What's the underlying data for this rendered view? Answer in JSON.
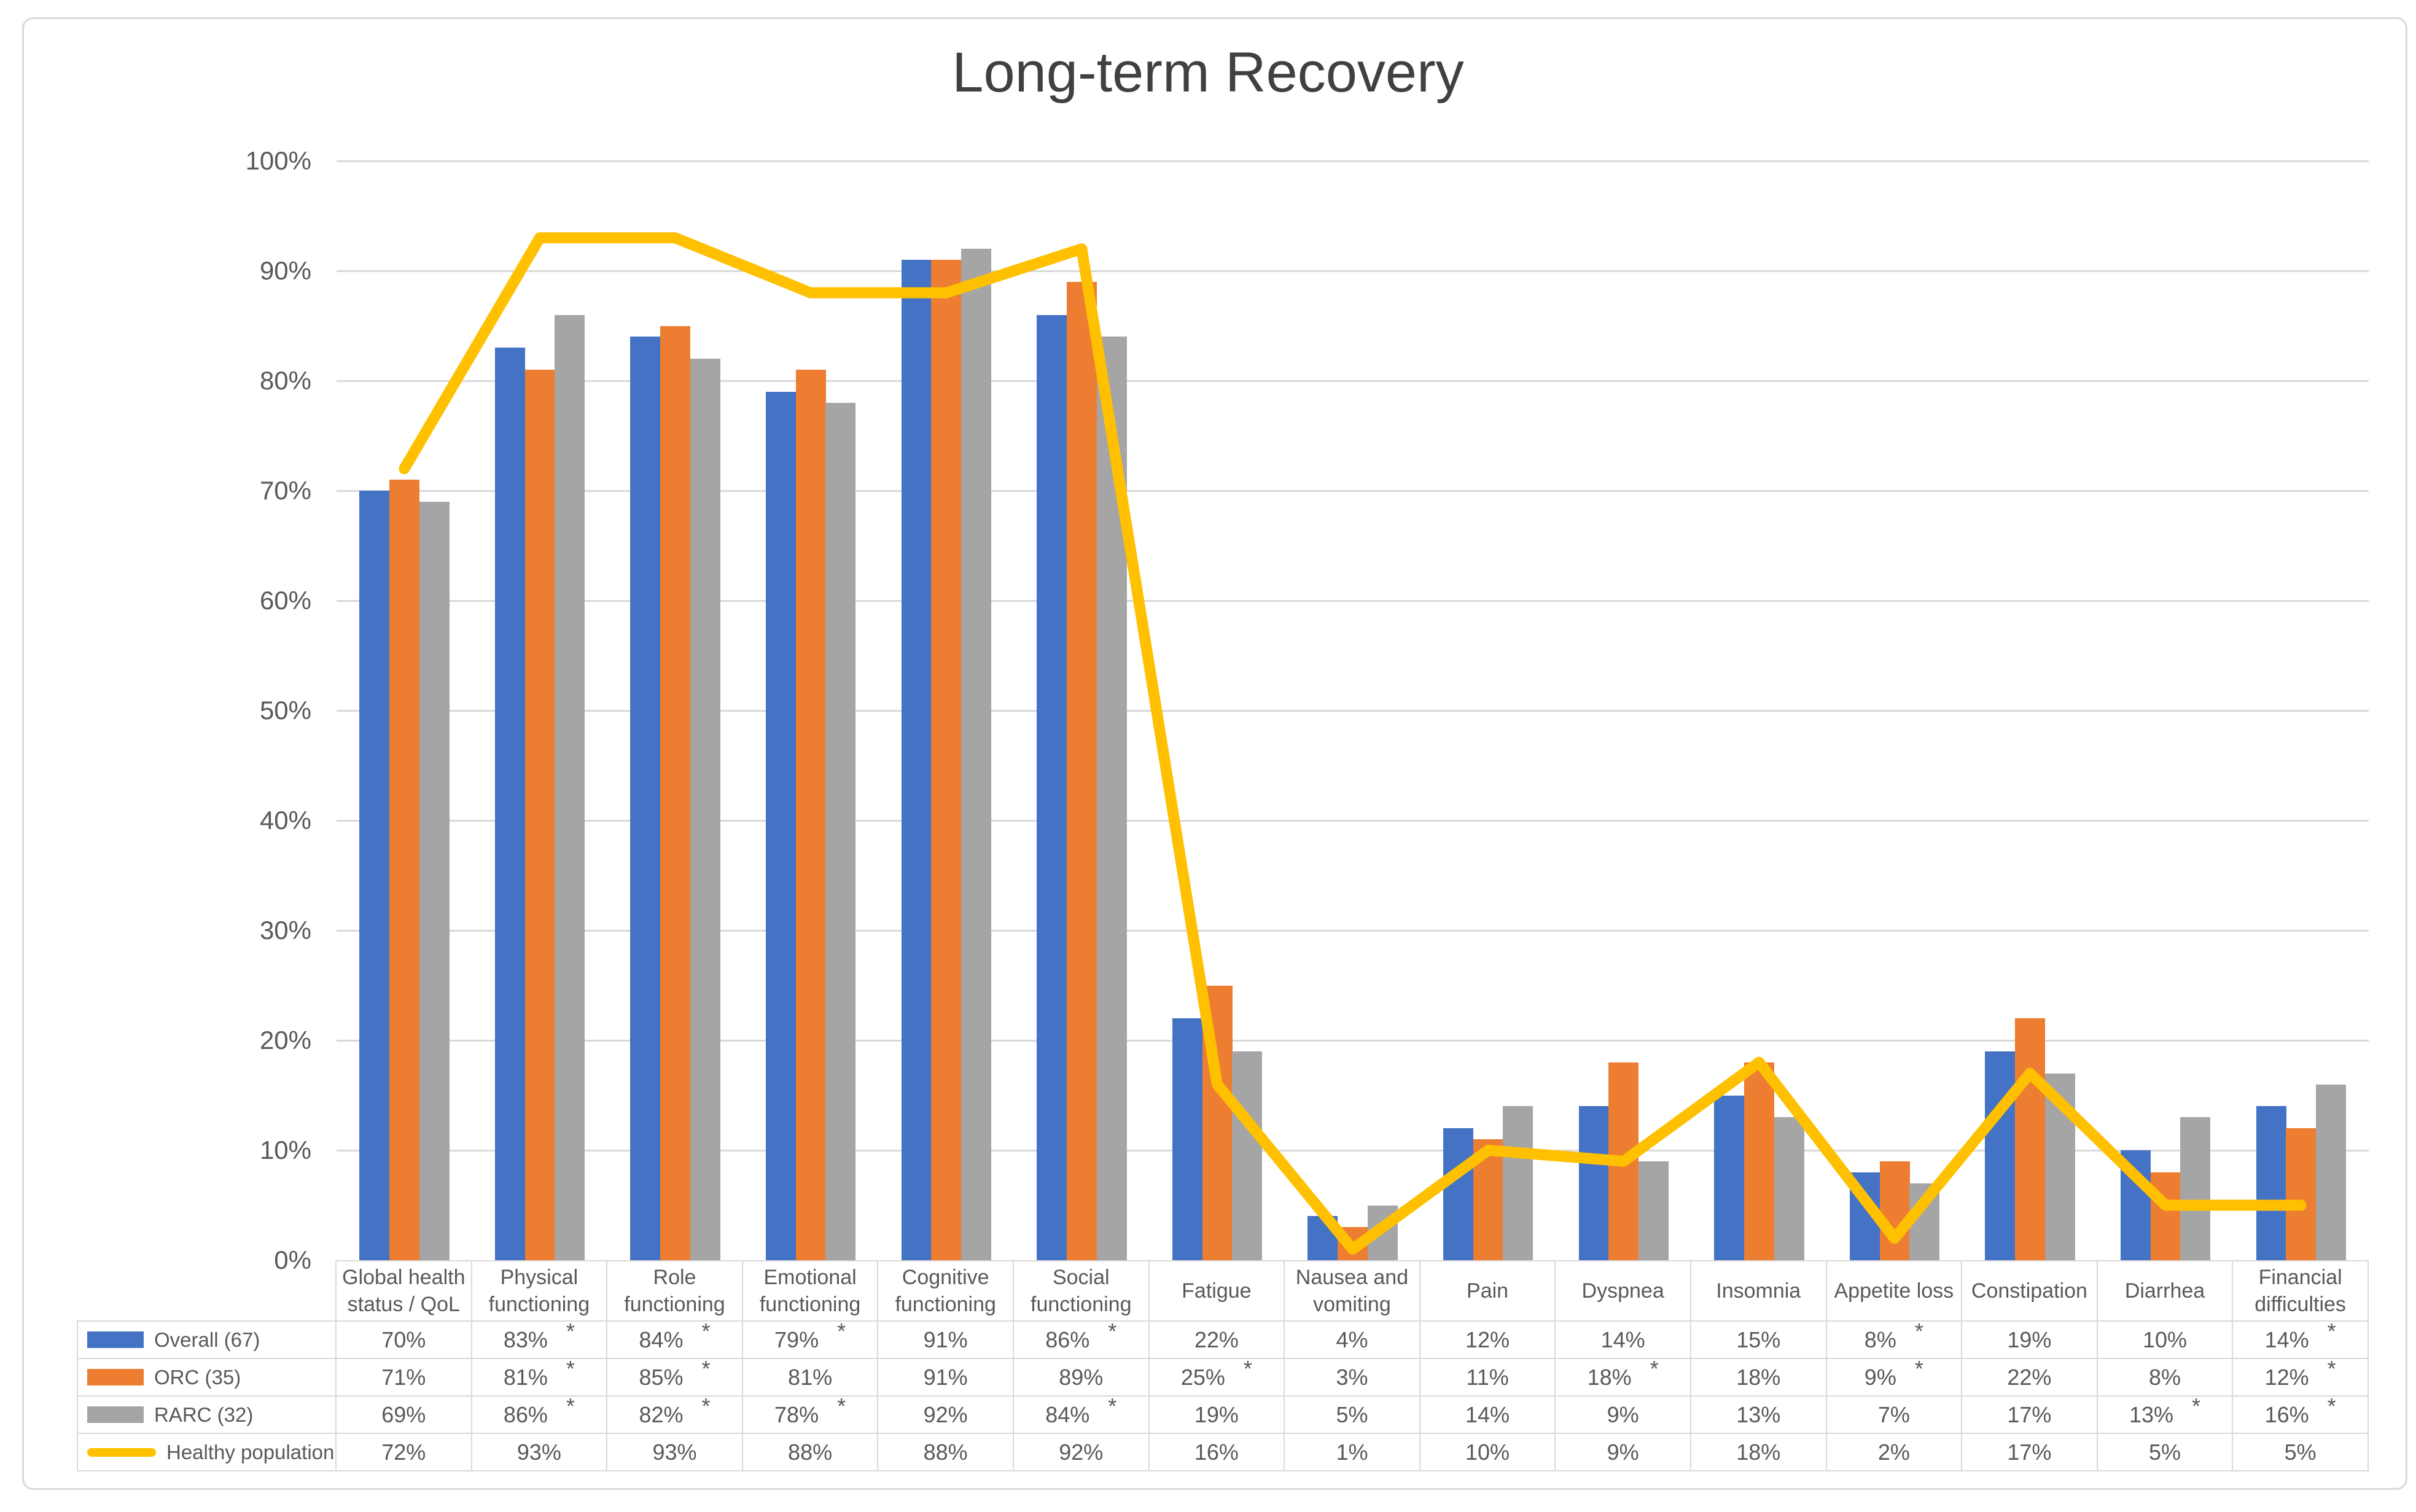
{
  "chart_data": {
    "type": "bar",
    "title": "Long-term Recovery",
    "categories": [
      [
        "Global health",
        "status / QoL"
      ],
      [
        "Physical",
        "functioning"
      ],
      [
        "Role",
        "functioning"
      ],
      [
        "Emotional",
        "functioning"
      ],
      [
        "Cognitive",
        "functioning"
      ],
      [
        "Social",
        "functioning"
      ],
      [
        "Fatigue"
      ],
      [
        "Nausea and",
        "vomiting"
      ],
      [
        "Pain"
      ],
      [
        "Dyspnea"
      ],
      [
        "Insomnia"
      ],
      [
        "Appetite loss"
      ],
      [
        "Constipation"
      ],
      [
        "Diarrhea"
      ],
      [
        "Financial",
        "difficulties"
      ]
    ],
    "series": [
      {
        "name": "Overall (67)",
        "color": "#4472C4",
        "values": [
          70,
          83,
          84,
          79,
          91,
          86,
          22,
          4,
          12,
          14,
          15,
          8,
          19,
          10,
          14
        ],
        "stars": [
          0,
          1,
          1,
          1,
          0,
          1,
          0,
          0,
          0,
          0,
          0,
          1,
          0,
          0,
          1
        ]
      },
      {
        "name": "ORC (35)",
        "color": "#ED7D31",
        "values": [
          71,
          81,
          85,
          81,
          91,
          89,
          25,
          3,
          11,
          18,
          18,
          9,
          22,
          8,
          12
        ],
        "stars": [
          0,
          1,
          1,
          0,
          0,
          0,
          1,
          0,
          0,
          1,
          0,
          1,
          0,
          0,
          1
        ]
      },
      {
        "name": "RARC (32)",
        "color": "#A5A5A5",
        "values": [
          69,
          86,
          82,
          78,
          92,
          84,
          19,
          5,
          14,
          9,
          13,
          7,
          17,
          13,
          16
        ],
        "stars": [
          0,
          1,
          1,
          1,
          0,
          1,
          0,
          0,
          0,
          0,
          0,
          0,
          0,
          1,
          1
        ]
      }
    ],
    "line_series": {
      "name": "Healthy population",
      "color": "#FFC000",
      "values": [
        72,
        93,
        93,
        88,
        88,
        92,
        16,
        1,
        10,
        9,
        18,
        2,
        17,
        5,
        5
      ]
    },
    "yticks": [
      "0%",
      "10%",
      "20%",
      "30%",
      "40%",
      "50%",
      "60%",
      "70%",
      "80%",
      "90%",
      "100%"
    ],
    "ylim": [
      0,
      100
    ],
    "ytick_step": 10,
    "value_suffix": "%",
    "sig_marker": "*",
    "grid": true,
    "legend_position": "table-left",
    "colors": {
      "grid": "#D9D9D9",
      "axis_text": "#595959",
      "title_text": "#404040",
      "table_border": "#D9D9D9",
      "table_text": "#595959",
      "background": "#FFFFFF"
    }
  }
}
